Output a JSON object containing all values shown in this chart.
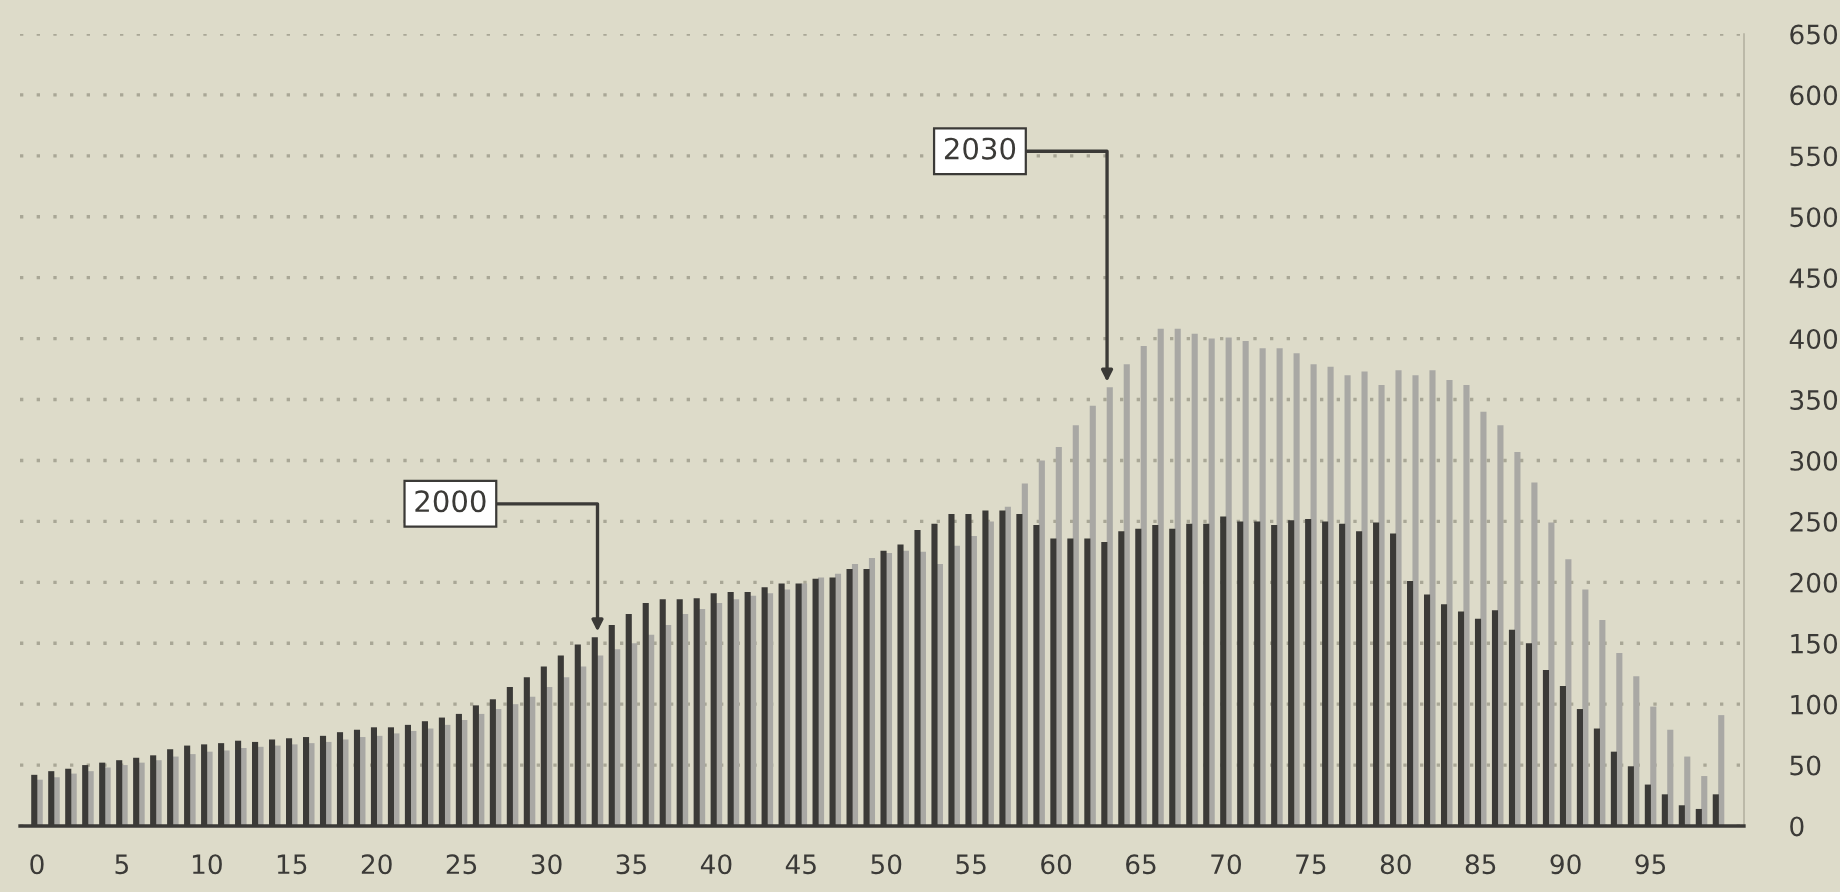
{
  "chart_data": {
    "type": "bar",
    "x": [
      0,
      1,
      2,
      3,
      4,
      5,
      6,
      7,
      8,
      9,
      10,
      11,
      12,
      13,
      14,
      15,
      16,
      17,
      18,
      19,
      20,
      21,
      22,
      23,
      24,
      25,
      26,
      27,
      28,
      29,
      30,
      31,
      32,
      33,
      34,
      35,
      36,
      37,
      38,
      39,
      40,
      41,
      42,
      43,
      44,
      45,
      46,
      47,
      48,
      49,
      50,
      51,
      52,
      53,
      54,
      55,
      56,
      57,
      58,
      59,
      60,
      61,
      62,
      63,
      64,
      65,
      66,
      67,
      68,
      69,
      70,
      71,
      72,
      73,
      74,
      75,
      76,
      77,
      78,
      79,
      80,
      81,
      82,
      83,
      84,
      85,
      86,
      87,
      88,
      89,
      90,
      91,
      92,
      93,
      94,
      95,
      96,
      97,
      98,
      99
    ],
    "series": [
      {
        "color": "#a9a8a4",
        "values": [
          38,
          40,
          43,
          45,
          48,
          50,
          52,
          54,
          57,
          59,
          61,
          62,
          64,
          65,
          66,
          67,
          68,
          69,
          71,
          73,
          74,
          76,
          78,
          80,
          83,
          87,
          92,
          96,
          100,
          106,
          114,
          122,
          131,
          140,
          145,
          150,
          157,
          165,
          174,
          178,
          183,
          186,
          189,
          191,
          194,
          199,
          204,
          207,
          215,
          220,
          224,
          226,
          225,
          215,
          230,
          238,
          250,
          262,
          281,
          300,
          311,
          329,
          345,
          360,
          379,
          394,
          408,
          408,
          404,
          400,
          401,
          398,
          392,
          392,
          388,
          379,
          377,
          370,
          373,
          362,
          374,
          370,
          374,
          366,
          362,
          340,
          329,
          307,
          282,
          249,
          219,
          194,
          169,
          142,
          123,
          98,
          79,
          57,
          41,
          91
        ]
      },
      {
        "color": "#3b3a37",
        "values": [
          42,
          45,
          47,
          50,
          52,
          54,
          56,
          58,
          63,
          66,
          67,
          68,
          70,
          69,
          71,
          72,
          73,
          74,
          77,
          79,
          81,
          81,
          83,
          86,
          89,
          92,
          99,
          104,
          114,
          122,
          131,
          140,
          149,
          155,
          165,
          174,
          183,
          186,
          186,
          187,
          191,
          192,
          192,
          196,
          199,
          199,
          203,
          204,
          211,
          211,
          226,
          231,
          243,
          248,
          256,
          256,
          259,
          259,
          256,
          247,
          236,
          236,
          236,
          233,
          242,
          244,
          247,
          244,
          248,
          248,
          254,
          250,
          250,
          247,
          251,
          252,
          250,
          248,
          242,
          249,
          240,
          201,
          190,
          182,
          176,
          170,
          177,
          161,
          150,
          128,
          115,
          96,
          80,
          61,
          49,
          34,
          26,
          17,
          14,
          26
        ]
      }
    ],
    "xlim": [
      -1,
      100.5
    ],
    "xticks": [
      0,
      5,
      10,
      15,
      20,
      25,
      30,
      35,
      40,
      45,
      50,
      55,
      60,
      65,
      70,
      75,
      80,
      85,
      90,
      95
    ],
    "ylim": [
      0,
      650
    ],
    "yticks": [
      0,
      50,
      100,
      150,
      200,
      250,
      300,
      350,
      400,
      450,
      500,
      550,
      600,
      650
    ],
    "grid": "y",
    "annotations": [
      {
        "text": "2000",
        "x": 33,
        "y": 155
      },
      {
        "text": "2030",
        "x": 63,
        "y": 360
      }
    ]
  }
}
